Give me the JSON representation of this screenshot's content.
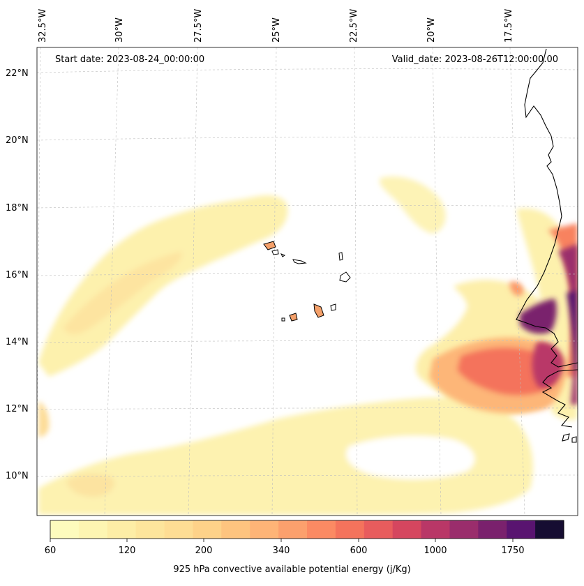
{
  "header": {
    "start_label": "Start date: 2023-08-24_00:00:00",
    "valid_label": "Valid_date: 2023-08-26T12:00:00.00"
  },
  "map": {
    "longitude_labels": [
      "32.5°W",
      "30°W",
      "27.5°W",
      "25°W",
      "22.5°W",
      "20°W",
      "17.5°W"
    ],
    "latitude_labels": [
      "22°N",
      "20°N",
      "18°N",
      "16°N",
      "14°N",
      "12°N",
      "10°N"
    ],
    "extent": {
      "lon": [
        -32.5,
        -15.2
      ],
      "lat": [
        8.9,
        22.7
      ]
    },
    "gridlines": true,
    "colormap": "magma_r"
  },
  "colorbar": {
    "tick_labels": [
      "60",
      "120",
      "200",
      "340",
      "600",
      "1000",
      "1750"
    ],
    "title": "925 hPa convective available potential energy (j/Kg)",
    "colors": [
      "#fdfbbd",
      "#fdf5b2",
      "#fdeda6",
      "#fde59c",
      "#fedd94",
      "#fed289",
      "#fec47f",
      "#feb477",
      "#fca06d",
      "#fb8a63",
      "#f4735c",
      "#e85c5d",
      "#d5465f",
      "#b93767",
      "#9a2d6c",
      "#7a216d",
      "#591470",
      "#160d32"
    ]
  }
}
